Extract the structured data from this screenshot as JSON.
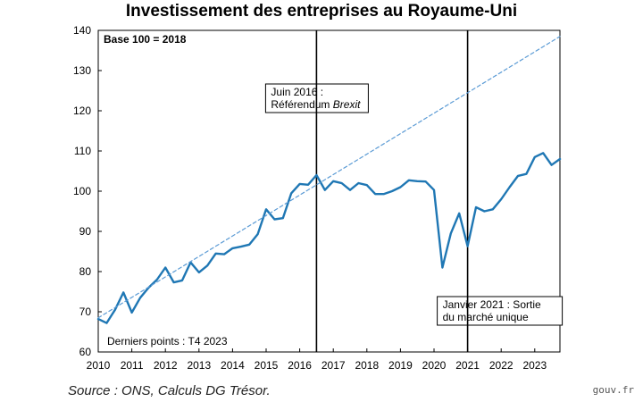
{
  "chart_data": {
    "type": "line",
    "title": "Investissement des entreprises au Royaume-Uni",
    "xlabel": "",
    "ylabel": "",
    "xlim": [
      2010.0,
      2023.75
    ],
    "ylim": [
      60,
      140
    ],
    "y_ticks": [
      60,
      70,
      80,
      90,
      100,
      110,
      120,
      130,
      140
    ],
    "x_ticks": [
      "2010",
      "2011",
      "2012",
      "2013",
      "2014",
      "2015",
      "2016",
      "2017",
      "2018",
      "2019",
      "2020",
      "2021",
      "2022",
      "2023"
    ],
    "grid": false,
    "legend": "none",
    "base_note": "Base 100 = 2018",
    "last_points_note": "Derniers points : T4 2023",
    "series": [
      {
        "color": "#1f77b4",
        "style": "solid",
        "points": [
          [
            2010.0,
            68.2
          ],
          [
            2010.25,
            67.2
          ],
          [
            2010.5,
            70.5
          ],
          [
            2010.75,
            74.8
          ],
          [
            2011.0,
            69.8
          ],
          [
            2011.25,
            73.5
          ],
          [
            2011.5,
            76.0
          ],
          [
            2011.75,
            78.0
          ],
          [
            2012.0,
            81.0
          ],
          [
            2012.25,
            77.3
          ],
          [
            2012.5,
            77.8
          ],
          [
            2012.75,
            82.3
          ],
          [
            2013.0,
            79.8
          ],
          [
            2013.25,
            81.5
          ],
          [
            2013.5,
            84.5
          ],
          [
            2013.75,
            84.3
          ],
          [
            2014.0,
            85.8
          ],
          [
            2014.25,
            86.2
          ],
          [
            2014.5,
            86.7
          ],
          [
            2014.75,
            89.3
          ],
          [
            2015.0,
            95.5
          ],
          [
            2015.25,
            93.0
          ],
          [
            2015.5,
            93.3
          ],
          [
            2015.75,
            99.5
          ],
          [
            2016.0,
            101.8
          ],
          [
            2016.25,
            101.6
          ],
          [
            2016.5,
            104.0
          ],
          [
            2016.75,
            100.3
          ],
          [
            2017.0,
            102.5
          ],
          [
            2017.25,
            102.0
          ],
          [
            2017.5,
            100.3
          ],
          [
            2017.75,
            102.0
          ],
          [
            2018.0,
            101.5
          ],
          [
            2018.25,
            99.3
          ],
          [
            2018.5,
            99.3
          ],
          [
            2018.75,
            100.0
          ],
          [
            2019.0,
            101.0
          ],
          [
            2019.25,
            102.7
          ],
          [
            2019.5,
            102.5
          ],
          [
            2019.75,
            102.4
          ],
          [
            2020.0,
            100.3
          ],
          [
            2020.25,
            81.0
          ],
          [
            2020.5,
            89.5
          ],
          [
            2020.75,
            94.5
          ],
          [
            2021.0,
            86.3
          ],
          [
            2021.25,
            96.0
          ],
          [
            2021.5,
            95.0
          ],
          [
            2021.75,
            95.5
          ],
          [
            2022.0,
            98.0
          ],
          [
            2022.25,
            101.0
          ],
          [
            2022.5,
            103.8
          ],
          [
            2022.75,
            104.3
          ],
          [
            2023.0,
            108.5
          ],
          [
            2023.25,
            109.5
          ],
          [
            2023.5,
            106.5
          ],
          [
            2023.75,
            108.0
          ]
        ]
      },
      {
        "color": "#5b9bd5",
        "style": "dashed",
        "points": [
          [
            2010.0,
            68.5
          ],
          [
            2023.75,
            138.5
          ]
        ]
      }
    ],
    "events": [
      {
        "x": 2016.5,
        "label_lines": [
          "Juin 2016 :",
          "Référendum "
        ],
        "label_italic": "Brexit"
      },
      {
        "x": 2021.0,
        "label_lines": [
          "Janvier 2021 : Sortie",
          "du marché unique"
        ]
      }
    ]
  },
  "footer": {
    "source": "Source : ONS, Calculs DG Trésor.",
    "site": "gouv.fr"
  }
}
